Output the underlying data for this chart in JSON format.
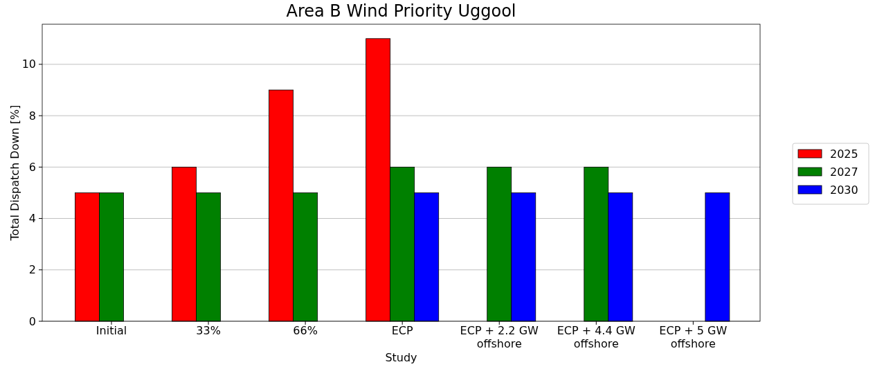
{
  "chart_data": {
    "type": "bar",
    "title": "Area B Wind Priority Uggool",
    "xlabel": "Study",
    "ylabel": "Total Dispatch Down [%]",
    "categories": [
      "Initial",
      "33%",
      "66%",
      "ECP",
      "ECP + 2.2 GW\noffshore",
      "ECP + 4.4 GW\noffshore",
      "ECP + 5 GW\noffshore"
    ],
    "series": [
      {
        "name": "2025",
        "color": "#ff0000",
        "values": [
          5,
          6,
          9,
          11,
          null,
          null,
          null
        ]
      },
      {
        "name": "2027",
        "color": "#008000",
        "values": [
          5,
          5,
          5,
          6,
          6,
          6,
          null
        ]
      },
      {
        "name": "2030",
        "color": "#0000ff",
        "values": [
          null,
          null,
          null,
          5,
          5,
          5,
          5
        ]
      }
    ],
    "ylim": [
      0,
      11.56
    ],
    "yticks": [
      0,
      2,
      4,
      6,
      8,
      10
    ],
    "grid": "y",
    "legend": "right"
  }
}
